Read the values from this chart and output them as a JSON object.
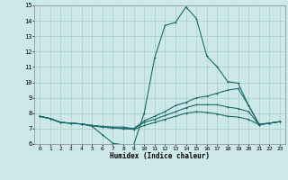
{
  "xlabel": "Humidex (Indice chaleur)",
  "bg_color": "#cce8e8",
  "grid_color": "#aacccc",
  "line_color": "#1a6b6b",
  "xlim": [
    -0.5,
    23.5
  ],
  "ylim": [
    6,
    15
  ],
  "xticks": [
    0,
    1,
    2,
    3,
    4,
    5,
    6,
    7,
    8,
    9,
    10,
    11,
    12,
    13,
    14,
    15,
    16,
    17,
    18,
    19,
    20,
    21,
    22,
    23
  ],
  "yticks": [
    6,
    7,
    8,
    9,
    10,
    11,
    12,
    13,
    14,
    15
  ],
  "lines": [
    {
      "x": [
        0,
        1,
        2,
        3,
        4,
        5,
        6,
        7,
        8,
        9,
        10,
        11,
        12,
        13,
        14,
        15,
        16,
        17,
        18,
        19,
        20,
        21,
        22,
        23
      ],
      "y": [
        7.8,
        7.65,
        7.4,
        7.35,
        7.3,
        7.15,
        6.6,
        6.05,
        5.95,
        5.95,
        8.0,
        11.6,
        13.7,
        13.9,
        14.9,
        14.15,
        11.7,
        11.0,
        10.05,
        9.95,
        8.5,
        7.25,
        7.35,
        7.45
      ]
    },
    {
      "x": [
        0,
        1,
        2,
        3,
        4,
        5,
        6,
        7,
        8,
        9,
        10,
        11,
        12,
        13,
        14,
        15,
        16,
        17,
        18,
        19,
        20,
        21,
        22,
        23
      ],
      "y": [
        7.8,
        7.65,
        7.4,
        7.35,
        7.3,
        7.2,
        7.1,
        7.05,
        7.0,
        7.0,
        7.5,
        7.8,
        8.1,
        8.5,
        8.7,
        9.0,
        9.1,
        9.3,
        9.5,
        9.6,
        8.5,
        7.3,
        7.35,
        7.45
      ]
    },
    {
      "x": [
        0,
        1,
        2,
        3,
        4,
        5,
        6,
        7,
        8,
        9,
        10,
        11,
        12,
        13,
        14,
        15,
        16,
        17,
        18,
        19,
        20,
        21,
        22,
        23
      ],
      "y": [
        7.8,
        7.65,
        7.4,
        7.35,
        7.3,
        7.2,
        7.15,
        7.1,
        7.1,
        7.0,
        7.4,
        7.6,
        7.85,
        8.1,
        8.35,
        8.55,
        8.55,
        8.55,
        8.4,
        8.3,
        8.1,
        7.25,
        7.35,
        7.45
      ]
    },
    {
      "x": [
        0,
        1,
        2,
        3,
        4,
        5,
        6,
        7,
        8,
        9,
        10,
        11,
        12,
        13,
        14,
        15,
        16,
        17,
        18,
        19,
        20,
        21,
        22,
        23
      ],
      "y": [
        7.8,
        7.65,
        7.4,
        7.35,
        7.3,
        7.2,
        7.1,
        7.05,
        7.0,
        6.95,
        7.2,
        7.4,
        7.6,
        7.8,
        8.0,
        8.1,
        8.05,
        7.95,
        7.8,
        7.75,
        7.6,
        7.25,
        7.35,
        7.45
      ]
    }
  ]
}
